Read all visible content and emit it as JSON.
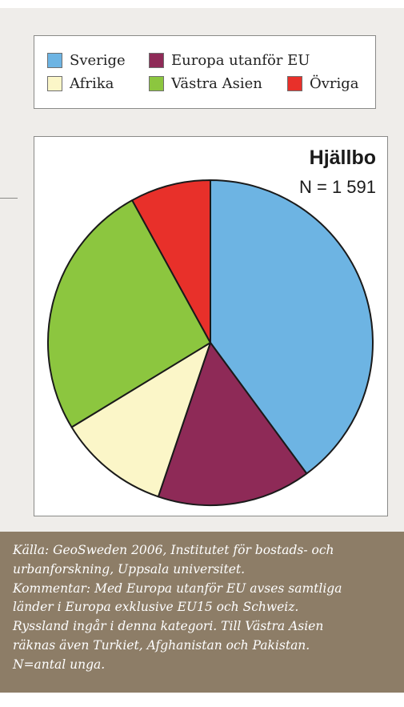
{
  "legend": {
    "items": [
      {
        "label": "Sverige",
        "color": "#6db4e3"
      },
      {
        "label": "Europa utanför EU",
        "color": "#8e2a57"
      },
      {
        "label": "Övriga",
        "color": "#e8302a"
      },
      {
        "label": "Afrika",
        "color": "#fbf6c8"
      },
      {
        "label": "Västra Asien",
        "color": "#8cc63f"
      }
    ]
  },
  "chart_data": {
    "type": "pie",
    "title": "Hjällbo",
    "subtitle": "N = 1 591",
    "categories": [
      "Sverige",
      "Europa utanför EU",
      "Afrika",
      "Västra Asien",
      "Övriga"
    ],
    "values": [
      39.9,
      15.3,
      11.1,
      25.7,
      8.0
    ],
    "colors": [
      "#6db4e3",
      "#8e2a57",
      "#fbf6c8",
      "#8cc63f",
      "#e8302a"
    ]
  },
  "caption": {
    "lines": [
      "Källa: GeoSweden 2006, Institutet för bostads- och",
      "urbanforskning, Uppsala universitet.",
      "Kommentar: Med Europa utanför EU avses samtliga",
      "länder i Europa exklusive EU15 och Schweiz.",
      "Ryssland ingår i denna kategori. Till Västra Asien",
      "räknas även Turkiet, Afghanistan och Pakistan.",
      "N=antal unga."
    ]
  }
}
